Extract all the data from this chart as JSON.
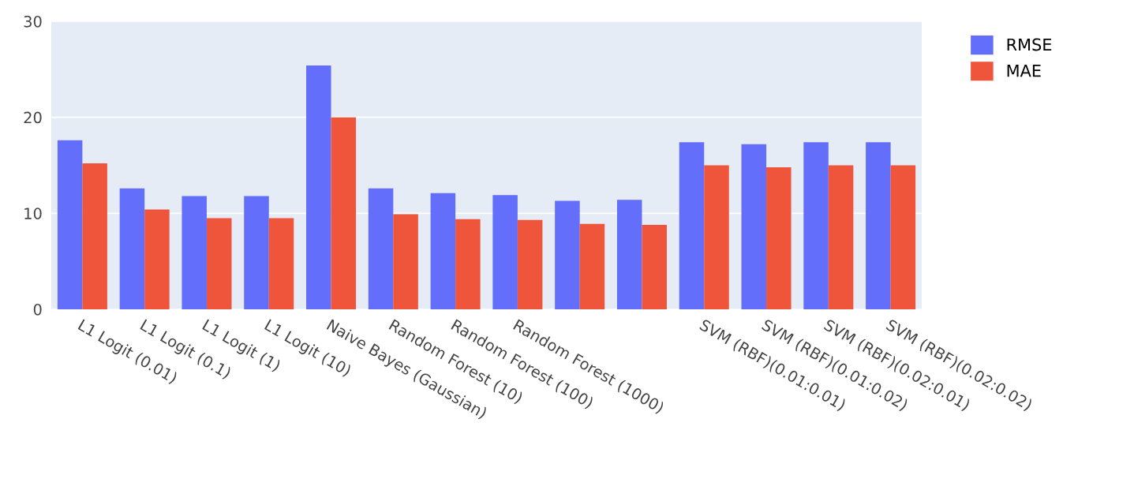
{
  "chart_data": {
    "type": "bar",
    "categories": [
      "L1 Logit (0.01)",
      "L1 Logit (0.1)",
      "L1 Logit (1)",
      "L1 Logit (10)",
      "Naive Bayes (Gaussian)",
      "Random Forest (10)",
      "Random Forest (100)",
      "Random Forest (1000)",
      null,
      null,
      "SVM (RBF)(0.01:0.01)",
      "SVM (RBF)(0.01:0.02)",
      "SVM (RBF)(0.02:0.01)",
      "SVM (RBF)(0.02:0.02)"
    ],
    "series": [
      {
        "name": "RMSE",
        "color": "#636efa",
        "values": [
          17.6,
          12.6,
          11.8,
          11.8,
          25.4,
          12.6,
          12.1,
          11.9,
          11.3,
          11.4,
          17.4,
          17.2,
          17.4,
          17.4
        ]
      },
      {
        "name": "MAE",
        "color": "#ef553b",
        "values": [
          15.2,
          10.4,
          9.5,
          9.5,
          20.0,
          9.9,
          9.4,
          9.3,
          8.9,
          8.8,
          15.0,
          14.8,
          15.0,
          15.0
        ]
      }
    ],
    "ylim": [
      0,
      30
    ],
    "yticks": [
      0,
      10,
      20,
      30
    ],
    "grid": "y",
    "legend": "top right"
  }
}
